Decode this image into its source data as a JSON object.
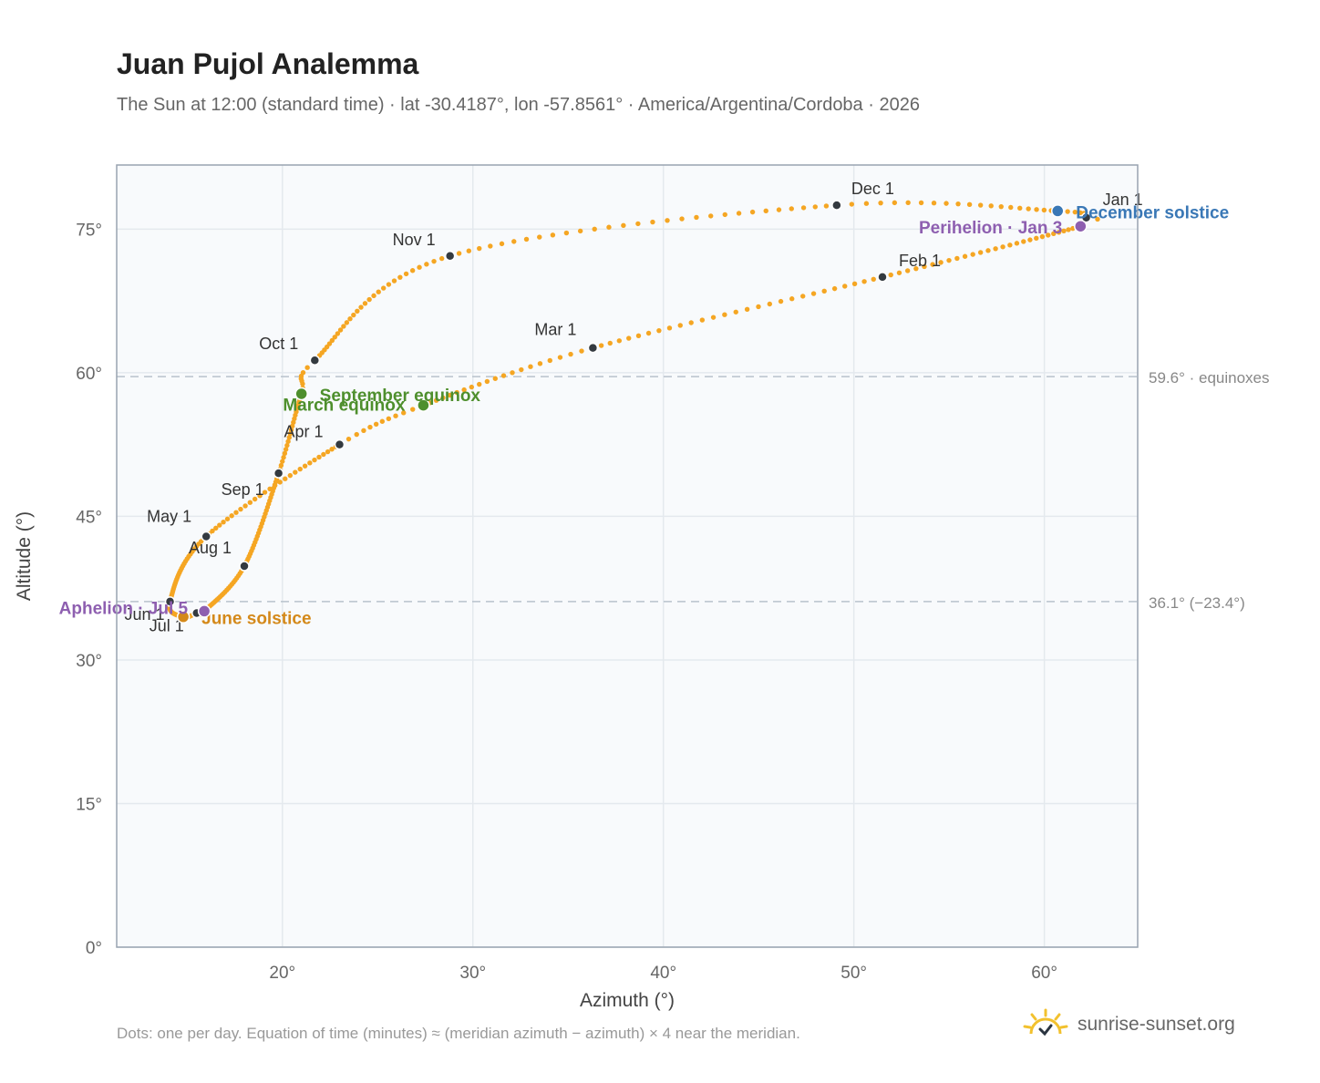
{
  "title": "Juan Pujol Analemma",
  "subtitle": "The Sun at 12:00 (standard time) · lat -30.4187°, lon -57.8561° · America/Argentina/Cordoba · 2026",
  "footer_note": "Dots: one per day. Equation of time (minutes) ≈ (meridian azimuth − azimuth) × 4 near the meridian.",
  "brand": {
    "name": "sunrise-sunset.org",
    "logo_icon": "sun-check-icon",
    "logo_color": "#f2c12e"
  },
  "colors": {
    "curve": "#f5a623",
    "month_marker": "#343a40",
    "equinox": "#4e8f2d",
    "june_solstice": "#d4891a",
    "december_solstice": "#3a78b6",
    "apsis": "#8e5fb0",
    "reference_line": "#b8c2cc",
    "plot_bg": "#f8fafc",
    "grid": "#e4e9ee"
  },
  "chart_data": {
    "type": "scatter",
    "xlabel": "Azimuth (°)",
    "ylabel": "Altitude (°)",
    "xlim": [
      11.3,
      64.9
    ],
    "ylim": [
      0,
      81.7
    ],
    "x_ticks": [
      20,
      30,
      40,
      50,
      60
    ],
    "x_tick_labels": [
      "20°",
      "30°",
      "40°",
      "50°",
      "60°"
    ],
    "y_ticks": [
      0,
      15,
      30,
      45,
      60,
      75
    ],
    "y_tick_labels": [
      "0°",
      "15°",
      "30°",
      "45°",
      "60°",
      "75°"
    ],
    "grid": true,
    "reference_lines": [
      {
        "y": 59.6,
        "label": "59.6° · equinoxes"
      },
      {
        "y": 36.1,
        "label": "36.1° (−23.4°)"
      }
    ],
    "month_markers": [
      {
        "label": "Jan 1",
        "x": 62.2,
        "y": 76.2
      },
      {
        "label": "Feb 1",
        "x": 51.5,
        "y": 70.0
      },
      {
        "label": "Mar 1",
        "x": 36.3,
        "y": 62.6
      },
      {
        "label": "Apr 1",
        "x": 23.0,
        "y": 52.5
      },
      {
        "label": "May 1",
        "x": 16.0,
        "y": 42.9
      },
      {
        "label": "Jun 1",
        "x": 14.1,
        "y": 36.1
      },
      {
        "label": "Jul 1",
        "x": 15.5,
        "y": 34.9
      },
      {
        "label": "Aug 1",
        "x": 18.0,
        "y": 39.8
      },
      {
        "label": "Sep 1",
        "x": 19.8,
        "y": 49.5
      },
      {
        "label": "Oct 1",
        "x": 21.7,
        "y": 61.3
      },
      {
        "label": "Nov 1",
        "x": 28.8,
        "y": 72.2
      },
      {
        "label": "Dec 1",
        "x": 49.1,
        "y": 77.5
      }
    ],
    "events": [
      {
        "label": "March equinox",
        "x": 27.4,
        "y": 56.6,
        "kind": "equinox"
      },
      {
        "label": "September equinox",
        "x": 21.0,
        "y": 57.8,
        "kind": "equinox"
      },
      {
        "label": "June solstice",
        "x": 14.8,
        "y": 34.5,
        "kind": "june_solstice"
      },
      {
        "label": "December solstice",
        "x": 60.7,
        "y": 76.9,
        "kind": "december_solstice"
      },
      {
        "label": "Perihelion · Jan 3",
        "x": 61.9,
        "y": 75.3,
        "kind": "apsis"
      },
      {
        "label": "Aphelion · Jul 5",
        "x": 15.9,
        "y": 35.1,
        "kind": "apsis"
      }
    ]
  }
}
